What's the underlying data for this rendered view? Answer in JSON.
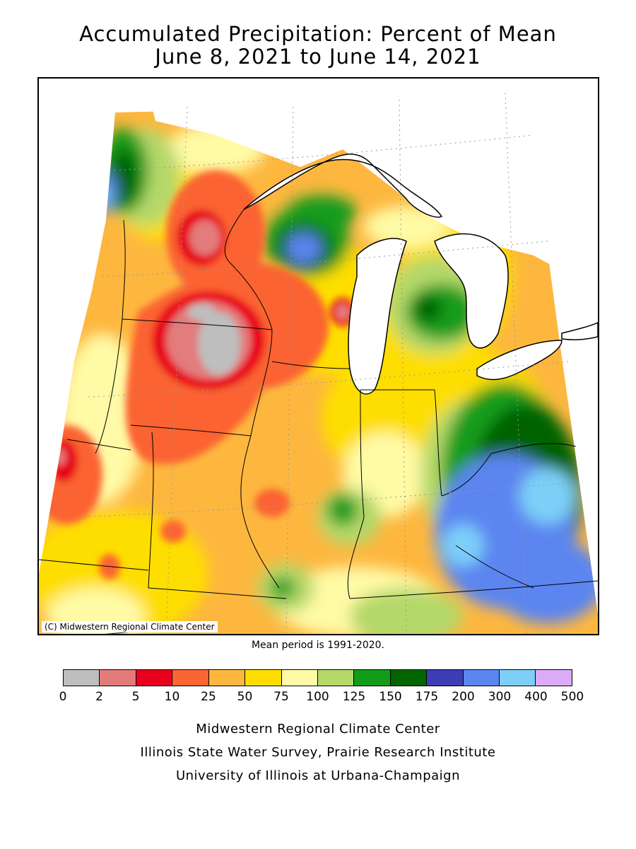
{
  "title": {
    "line1": "Accumulated Precipitation: Percent of Mean",
    "line2": "June 8, 2021 to June 14, 2021"
  },
  "map": {
    "copyright": "(C) Midwestern Regional Climate Center",
    "mean_period": "Mean period is 1991-2020."
  },
  "legend": {
    "ticks": [
      "0",
      "2",
      "5",
      "10",
      "25",
      "50",
      "75",
      "100",
      "125",
      "150",
      "175",
      "200",
      "300",
      "400",
      "500"
    ],
    "colors": [
      "#bebebe",
      "#e37b7b",
      "#e8001d",
      "#fb6433",
      "#fdb73f",
      "#fede00",
      "#fffaa5",
      "#b5d86a",
      "#139b1a",
      "#006400",
      "#3d3db4",
      "#5c85f0",
      "#7dcff8",
      "#dbaaf8"
    ]
  },
  "credits": {
    "line1": "Midwestern Regional Climate Center",
    "line2": "Illinois State Water Survey, Prairie Research Institute",
    "line3": "University of Illinois at Urbana-Champaign"
  }
}
